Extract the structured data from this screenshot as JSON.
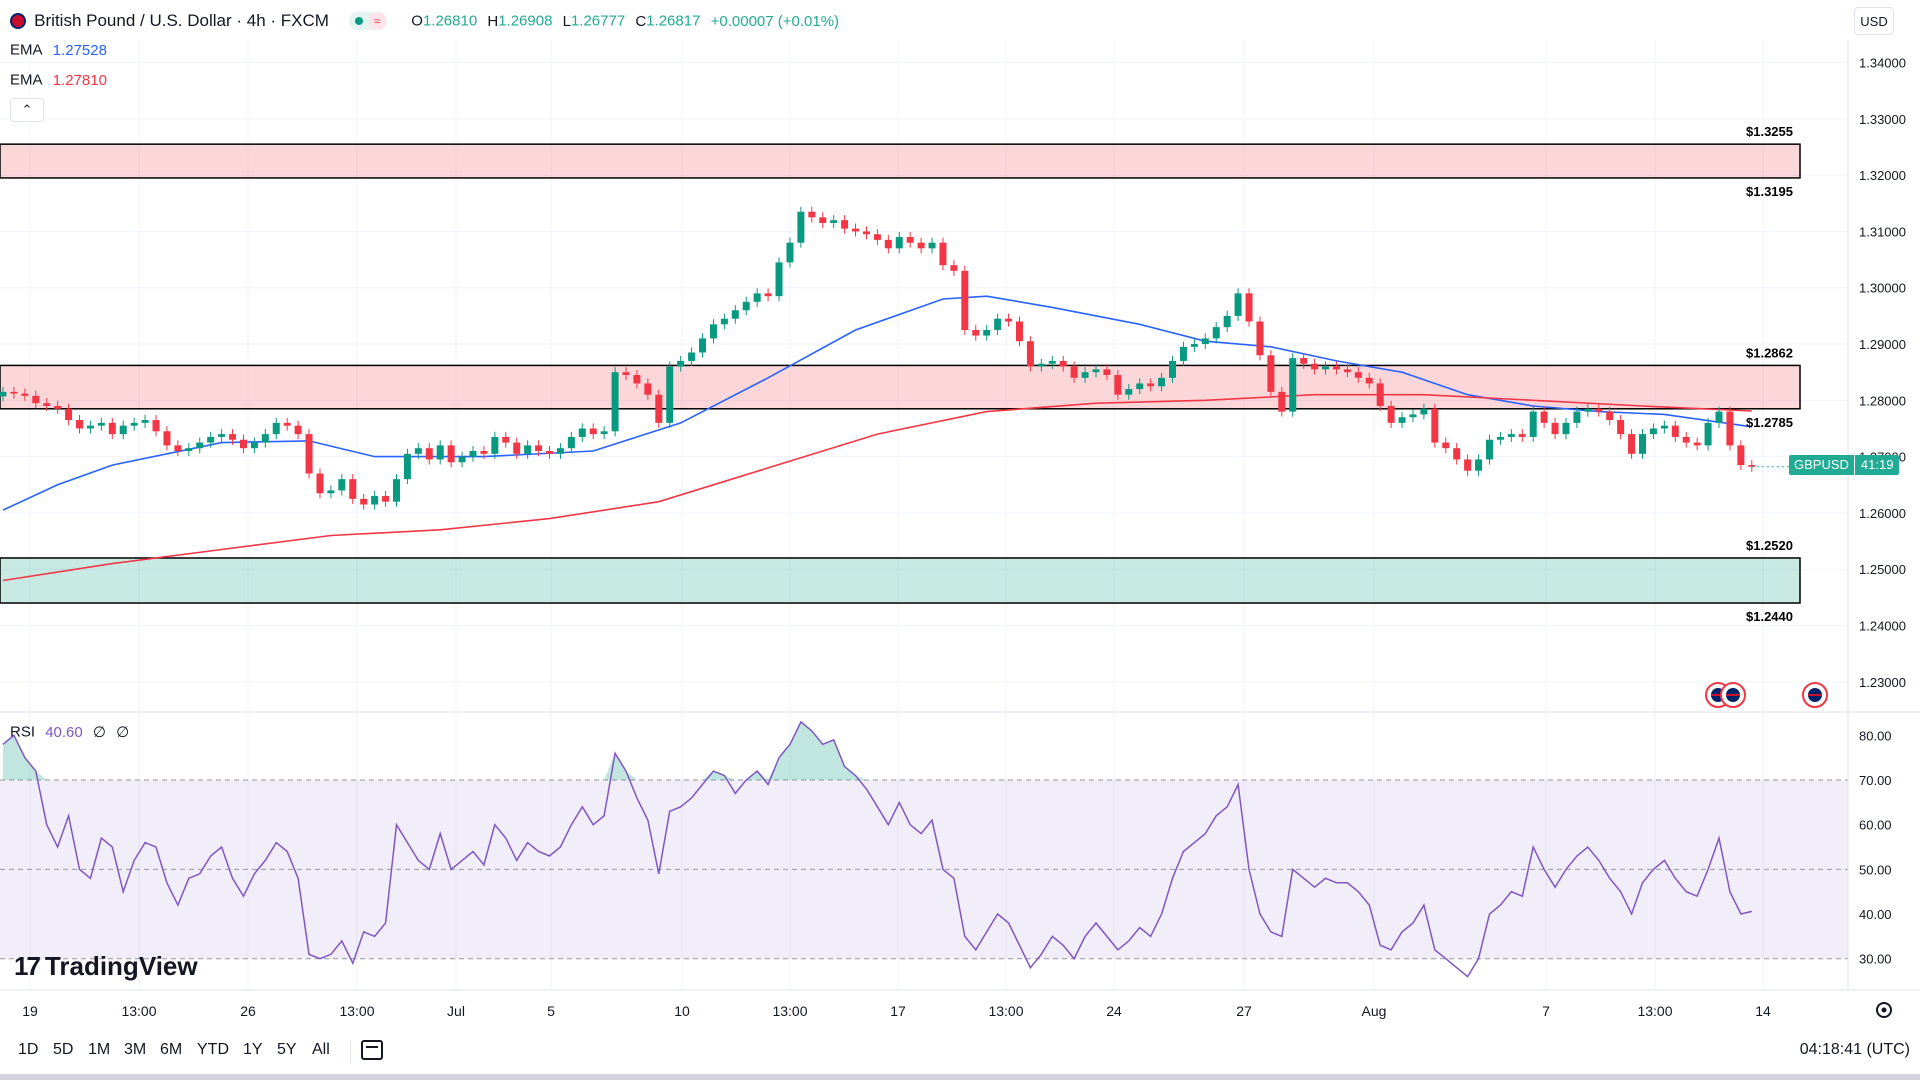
{
  "header": {
    "title": "British Pound / U.S. Dollar · 4h · FXCM",
    "ohlc": [
      {
        "label": "O",
        "value": "1.26810"
      },
      {
        "label": "H",
        "value": "1.26908"
      },
      {
        "label": "L",
        "value": "1.26777"
      },
      {
        "label": "C",
        "value": "1.26817"
      }
    ],
    "change": "+0.00007 (+0.01%)",
    "currency": "USD"
  },
  "indicators": {
    "ema_fast": {
      "label": "EMA",
      "value": "1.27528",
      "color": "#2962ff"
    },
    "ema_slow": {
      "label": "EMA",
      "value": "1.27810",
      "color": "#f23645"
    },
    "collapse_icon": "chevron-up-icon"
  },
  "rsi": {
    "label": "RSI",
    "value": "40.60",
    "extra1": "∅",
    "extra2": "∅",
    "color": "#7e57c2"
  },
  "price_tag": {
    "symbol": "GBPUSD",
    "countdown": "41:19",
    "color": "#22ab94"
  },
  "levels": [
    {
      "label": "$1.3255",
      "value": 1.3255
    },
    {
      "label": "$1.3195",
      "value": 1.3195
    },
    {
      "label": "$1.2862",
      "value": 1.2862
    },
    {
      "label": "$1.2785",
      "value": 1.2785
    },
    {
      "label": "$1.2520",
      "value": 1.252
    },
    {
      "label": "$1.2440",
      "value": 1.244
    }
  ],
  "zones": [
    {
      "type": "resistance",
      "low": 1.3195,
      "high": 1.3255,
      "color": "#f23645"
    },
    {
      "type": "resistance",
      "low": 1.2785,
      "high": 1.2862,
      "color": "#f23645"
    },
    {
      "type": "support",
      "low": 1.244,
      "high": 1.252,
      "color": "#089981"
    }
  ],
  "bottom_bar": {
    "ranges": [
      "1D",
      "5D",
      "1M",
      "3M",
      "6M",
      "YTD",
      "1Y",
      "5Y",
      "All"
    ],
    "time": "04:18:41 (UTC)",
    "calendar_icon": "calendar-icon",
    "settings_icon": "gear-icon"
  },
  "branding": {
    "text": "TradingView"
  },
  "chart_data": [
    {
      "type": "candlestick",
      "title": "British Pound / U.S. Dollar · 4h · FXCM",
      "ylim": [
        1.225,
        1.344
      ],
      "y_ticks": [
        "1.34000",
        "1.33000",
        "1.32000",
        "1.31000",
        "1.30000",
        "1.29000",
        "1.28000",
        "1.27000",
        "1.26000",
        "1.25000",
        "1.24000",
        "1.23000"
      ],
      "x_ticks": [
        "19",
        "13:00",
        "26",
        "13:00",
        "Jul",
        "5",
        "10",
        "13:00",
        "17",
        "13:00",
        "24",
        "27",
        "Aug",
        "7",
        "13:00",
        "14"
      ],
      "grid": true,
      "close_series": [
        1.2815,
        1.2812,
        1.2808,
        1.2795,
        1.279,
        1.2785,
        1.2765,
        1.275,
        1.2755,
        1.276,
        1.274,
        1.2755,
        1.276,
        1.2765,
        1.2745,
        1.272,
        1.271,
        1.2715,
        1.2725,
        1.2735,
        1.274,
        1.273,
        1.2715,
        1.2725,
        1.274,
        1.276,
        1.2755,
        1.274,
        1.267,
        1.2635,
        1.264,
        1.266,
        1.2625,
        1.2615,
        1.263,
        1.262,
        1.266,
        1.2705,
        1.2715,
        1.2695,
        1.272,
        1.269,
        1.27,
        1.271,
        1.2705,
        1.2735,
        1.2725,
        1.2705,
        1.272,
        1.271,
        1.2705,
        1.2715,
        1.2735,
        1.275,
        1.274,
        1.2745,
        1.285,
        1.2845,
        1.283,
        1.281,
        1.276,
        1.286,
        1.287,
        1.2885,
        1.291,
        1.2935,
        1.2945,
        1.296,
        1.2975,
        1.299,
        1.2985,
        1.3045,
        1.308,
        1.3135,
        1.3125,
        1.3115,
        1.312,
        1.3105,
        1.31,
        1.3095,
        1.3085,
        1.307,
        1.309,
        1.308,
        1.307,
        1.308,
        1.304,
        1.303,
        1.2925,
        1.2915,
        1.2925,
        1.2945,
        1.294,
        1.2905,
        1.286,
        1.2865,
        1.287,
        1.286,
        1.284,
        1.285,
        1.2855,
        1.2845,
        1.281,
        1.282,
        1.283,
        1.2825,
        1.284,
        1.287,
        1.2895,
        1.29,
        1.291,
        1.293,
        1.295,
        1.299,
        1.294,
        1.288,
        1.2815,
        1.278,
        1.2875,
        1.2865,
        1.2855,
        1.286,
        1.2855,
        1.285,
        1.284,
        1.283,
        1.279,
        1.276,
        1.277,
        1.2775,
        1.2785,
        1.2725,
        1.2715,
        1.2695,
        1.2675,
        1.2695,
        1.273,
        1.2735,
        1.274,
        1.2735,
        1.278,
        1.276,
        1.274,
        1.276,
        1.278,
        1.2785,
        1.278,
        1.2765,
        1.274,
        1.2705,
        1.274,
        1.275,
        1.2755,
        1.2735,
        1.2725,
        1.272,
        1.276,
        1.278,
        1.272,
        1.2685,
        1.2682
      ],
      "series": [
        {
          "name": "EMA",
          "color": "#2962ff",
          "points": [
            [
              0,
              1.2605
            ],
            [
              5,
              1.265
            ],
            [
              10,
              1.2685
            ],
            [
              20,
              1.2725
            ],
            [
              28,
              1.2728
            ],
            [
              34,
              1.27
            ],
            [
              44,
              1.27
            ],
            [
              54,
              1.271
            ],
            [
              62,
              1.276
            ],
            [
              70,
              1.284
            ],
            [
              78,
              1.2925
            ],
            [
              86,
              1.298
            ],
            [
              90,
              1.2985
            ],
            [
              96,
              1.2965
            ],
            [
              104,
              1.2935
            ],
            [
              110,
              1.2905
            ],
            [
              116,
              1.2895
            ],
            [
              122,
              1.287
            ],
            [
              128,
              1.285
            ],
            [
              134,
              1.281
            ],
            [
              140,
              1.279
            ],
            [
              146,
              1.278
            ],
            [
              152,
              1.2775
            ],
            [
              160,
              1.2753
            ]
          ]
        },
        {
          "name": "EMA",
          "color": "#f23645",
          "points": [
            [
              0,
              1.248
            ],
            [
              10,
              1.251
            ],
            [
              20,
              1.2535
            ],
            [
              30,
              1.256
            ],
            [
              40,
              1.257
            ],
            [
              50,
              1.259
            ],
            [
              60,
              1.262
            ],
            [
              70,
              1.268
            ],
            [
              80,
              1.274
            ],
            [
              90,
              1.278
            ],
            [
              100,
              1.2795
            ],
            [
              110,
              1.28
            ],
            [
              120,
              1.281
            ],
            [
              130,
              1.281
            ],
            [
              140,
              1.28
            ],
            [
              150,
              1.279
            ],
            [
              160,
              1.2781
            ]
          ]
        }
      ]
    },
    {
      "type": "line",
      "title": "RSI",
      "ylim": [
        23,
        85
      ],
      "y_ticks": [
        "80.00",
        "70.00",
        "60.00",
        "50.00",
        "40.00",
        "30.00"
      ],
      "bands": [
        30,
        50,
        70
      ],
      "values": [
        78,
        80,
        75,
        72,
        60,
        55,
        62,
        50,
        48,
        57,
        55,
        45,
        52,
        56,
        55,
        47,
        42,
        48,
        49,
        53,
        55,
        48,
        44,
        49,
        52,
        56,
        54,
        48,
        31,
        30,
        31,
        34,
        29,
        36,
        35,
        38,
        60,
        56,
        52,
        50,
        58,
        50,
        52,
        54,
        51,
        60,
        57,
        52,
        56,
        54,
        53,
        55,
        60,
        64,
        60,
        62,
        76,
        72,
        66,
        61,
        49,
        63,
        64,
        66,
        69,
        72,
        71,
        67,
        70,
        72,
        69,
        75,
        78,
        83,
        81,
        78,
        79,
        73,
        71,
        68,
        64,
        60,
        65,
        60,
        58,
        61,
        50,
        48,
        35,
        32,
        36,
        40,
        38,
        33,
        28,
        31,
        35,
        33,
        30,
        35,
        38,
        35,
        32,
        34,
        37,
        35,
        40,
        48,
        54,
        56,
        58,
        62,
        64,
        69,
        50,
        40,
        36,
        35,
        50,
        48,
        46,
        48,
        47,
        47,
        45,
        42,
        33,
        32,
        36,
        38,
        42,
        32,
        30,
        28,
        26,
        30,
        40,
        42,
        45,
        44,
        55,
        50,
        46,
        50,
        53,
        55,
        52,
        48,
        45,
        40,
        47,
        50,
        52,
        48,
        45,
        44,
        50,
        57,
        45,
        40,
        40.6
      ]
    }
  ]
}
